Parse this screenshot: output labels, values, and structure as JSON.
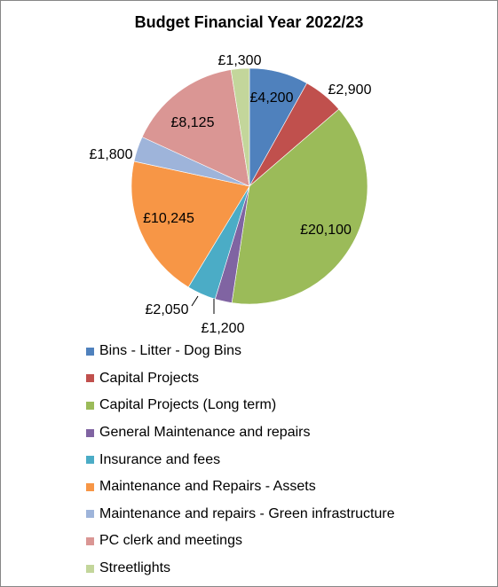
{
  "chart_data": {
    "type": "pie",
    "title": "Budget Financial Year 2022/23",
    "legend_position": "bottom",
    "slices": [
      {
        "label": "Bins - Litter - Dog Bins",
        "value": 4200,
        "display": "£4,200",
        "color": "#4F81BD"
      },
      {
        "label": "Capital Projects",
        "value": 2900,
        "display": "£2,900",
        "color": "#C0504D"
      },
      {
        "label": "Capital Projects (Long term)",
        "value": 20100,
        "display": "£20,100",
        "color": "#9BBB59"
      },
      {
        "label": "General Maintenance and repairs",
        "value": 1200,
        "display": "£1,200",
        "color": "#8064A2"
      },
      {
        "label": "Insurance and fees",
        "value": 2050,
        "display": "£2,050",
        "color": "#4BACC6"
      },
      {
        "label": "Maintenance and Repairs - Assets",
        "value": 10245,
        "display": "£10,245",
        "color": "#F79646"
      },
      {
        "label": "Maintenance and repairs - Green infrastructure",
        "value": 1800,
        "display": "£1,800",
        "color": "#9EB4DA"
      },
      {
        "label": "PC clerk and meetings",
        "value": 8125,
        "display": "£8,125",
        "color": "#DA9694"
      },
      {
        "label": "Streetlights",
        "value": 1300,
        "display": "£1,300",
        "color": "#C3D69B"
      }
    ]
  }
}
